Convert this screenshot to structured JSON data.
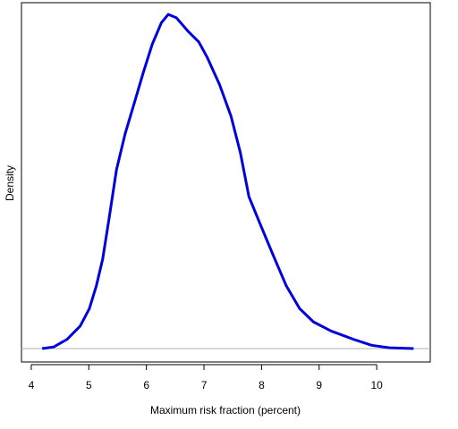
{
  "chart_data": {
    "type": "line",
    "x_label": "Maximum risk fraction (percent)",
    "y_label": "Density",
    "x": [
      4.19,
      4.39,
      4.62,
      4.85,
      5.01,
      5.13,
      5.24,
      5.35,
      5.48,
      5.63,
      5.79,
      5.94,
      6.1,
      6.26,
      6.38,
      6.52,
      6.72,
      6.91,
      7.06,
      7.27,
      7.47,
      7.63,
      7.78,
      7.97,
      8.2,
      8.43,
      8.66,
      8.9,
      9.21,
      9.6,
      9.91,
      10.22,
      10.64
    ],
    "series": [
      {
        "color": "#0000dd",
        "values": [
          0,
          0.002,
          0.011,
          0.027,
          0.048,
          0.075,
          0.107,
          0.155,
          0.214,
          0.257,
          0.294,
          0.329,
          0.364,
          0.39,
          0.4,
          0.396,
          0.38,
          0.367,
          0.348,
          0.316,
          0.278,
          0.235,
          0.182,
          0.15,
          0.112,
          0.075,
          0.048,
          0.032,
          0.021,
          0.011,
          0.004,
          0.001,
          0
        ]
      }
    ],
    "baseline": 0,
    "baseline_color": "#b0b0b0",
    "xlim": [
      3.83,
      10.93
    ],
    "xticks": [
      4,
      5,
      6,
      7,
      8,
      9,
      10
    ],
    "ylim": [
      -0.016,
      0.414
    ]
  }
}
